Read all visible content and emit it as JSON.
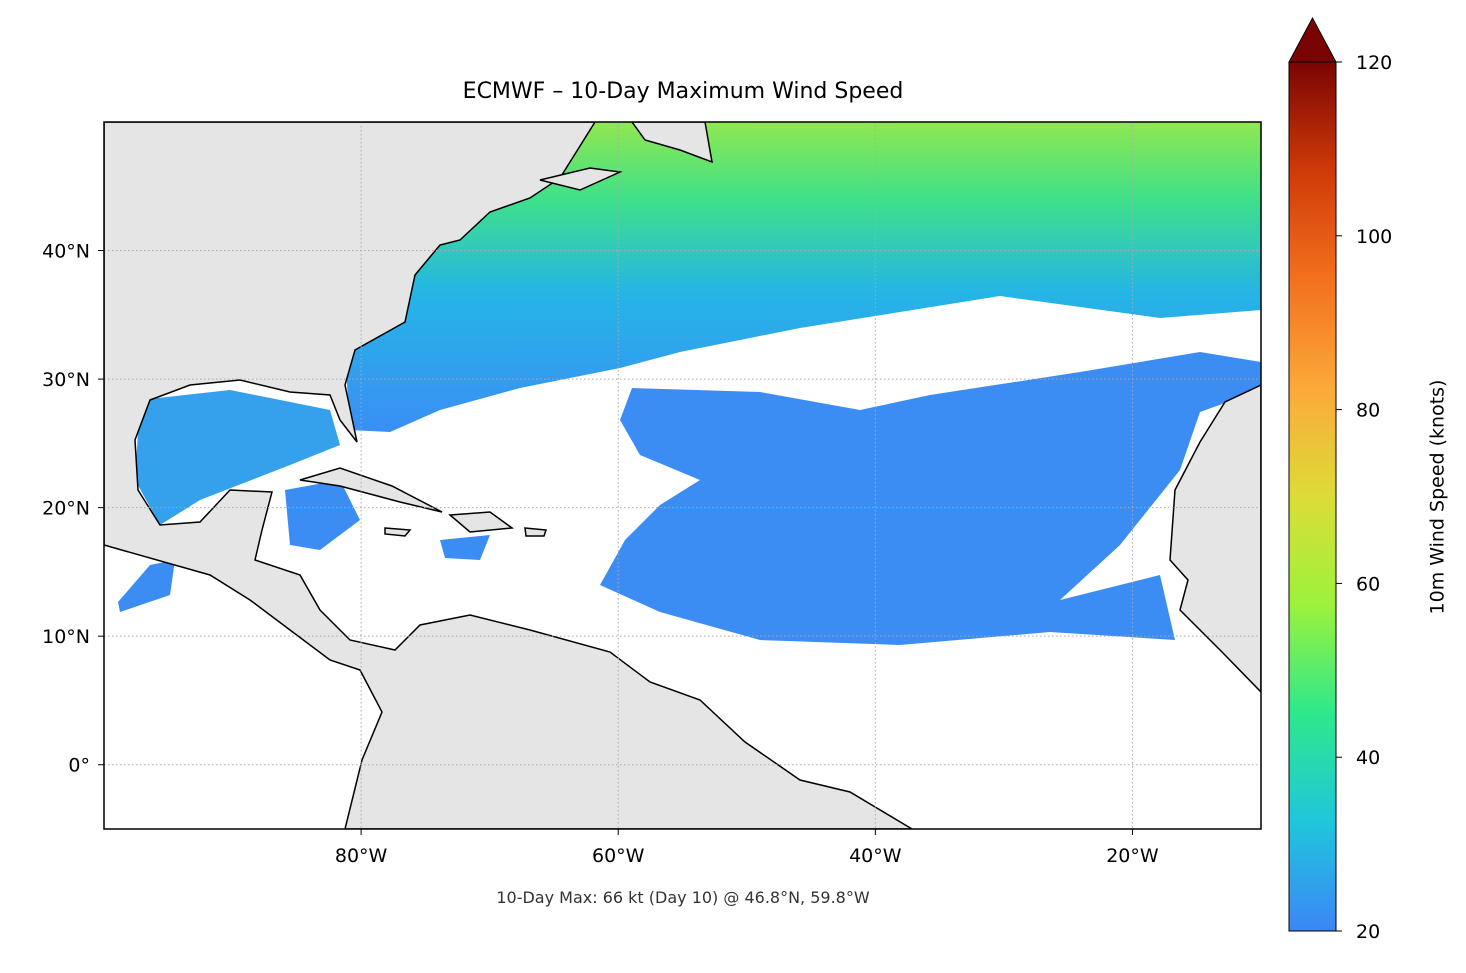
{
  "title": "ECMWF – 10-Day Maximum Wind Speed",
  "footnote": "10-Day Max: 66 kt (Day 10) @ 46.8°N, 59.8°W",
  "map": {
    "xlim": [
      -100,
      -10
    ],
    "ylim": [
      -5,
      50
    ],
    "xticks": [
      {
        "value": -80,
        "label": "80°W"
      },
      {
        "value": -60,
        "label": "60°W"
      },
      {
        "value": -40,
        "label": "40°W"
      },
      {
        "value": -20,
        "label": "20°W"
      }
    ],
    "yticks": [
      {
        "value": 0,
        "label": "0°"
      },
      {
        "value": 10,
        "label": "10°N"
      },
      {
        "value": 20,
        "label": "20°N"
      },
      {
        "value": 30,
        "label": "30°N"
      },
      {
        "value": 40,
        "label": "40°N"
      }
    ],
    "grid": true
  },
  "colorbar": {
    "label": "10m Wind Speed (knots)",
    "lim": [
      20,
      120
    ],
    "ticks": [
      20,
      40,
      60,
      80,
      100,
      120
    ],
    "colors": [
      "#3d85f7",
      "#1fc6dc",
      "#2de88c",
      "#9cf23c",
      "#dcdc38",
      "#fba93a",
      "#f3701d",
      "#cf3a08",
      "#7a0403"
    ]
  }
}
